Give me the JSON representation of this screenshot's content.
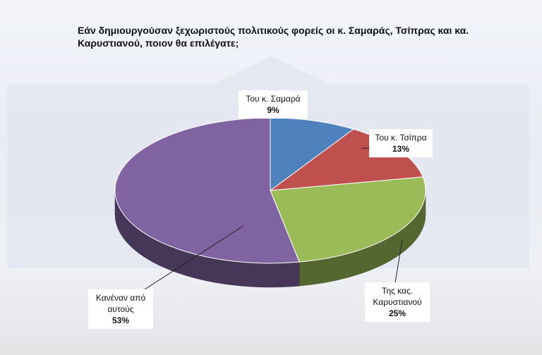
{
  "chart_data": {
    "type": "pie3d",
    "title": "Εάν δημιουργούσαν ξεχωριστούς πολιτικούς φορείς οι κ. Σαμαράς, Τσίπρας και κα. Καρυστιανού, ποιον θα επιλέγατε;",
    "categories": [
      "Του κ. Σαμαρά",
      "Του κ. Τσίπρα",
      "Της κας. Καρυστιανού",
      "Κανέναν από αυτούς"
    ],
    "values": [
      9,
      13,
      25,
      53
    ],
    "value_labels": [
      "9%",
      "13%",
      "25%",
      "53%"
    ],
    "colors": [
      "#4f81bd",
      "#c0504d",
      "#9bbb59",
      "#8064a2"
    ]
  }
}
